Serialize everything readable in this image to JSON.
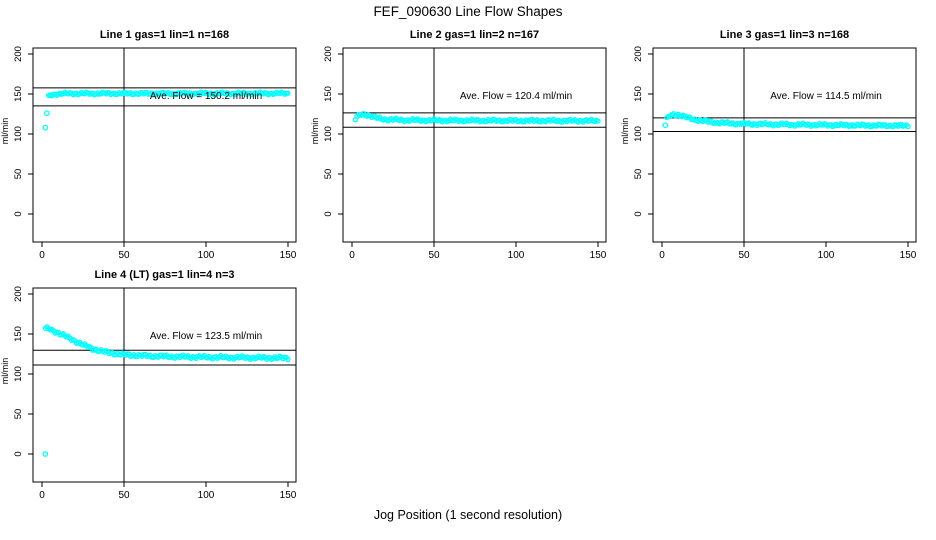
{
  "page": {
    "title": "FEF_090630  Line Flow Shapes",
    "xlabel": "Jog Position (1 second resolution)"
  },
  "chart_data": {
    "type": "scatter",
    "title": "FEF_090630  Line Flow Shapes",
    "xlabel": "Jog Position (1 second resolution)",
    "ylabel": "ml/min",
    "x_ticks": [
      0,
      50,
      100,
      150
    ],
    "y_ticks": [
      0,
      50,
      100,
      150,
      200
    ],
    "xlim": [
      0,
      155
    ],
    "ylim": [
      0,
      205
    ],
    "grid": false,
    "point_color": "#00ffff",
    "axis_color": "#000000",
    "v_line_x": 50,
    "plots": [
      {
        "title": "Line 1 gas=1 lin=1 n=168",
        "n": 168,
        "ave_flow": 150.2,
        "annotation": "Ave. Flow =  150.2  ml/min",
        "h_lines": [
          157.7,
          135.2
        ],
        "jitter": 1.3,
        "trend": [
          [
            4,
            146.5
          ],
          [
            5,
            148.5
          ],
          [
            7,
            149.5
          ],
          [
            10,
            150.3
          ],
          [
            15,
            150.6
          ],
          [
            25,
            150.7
          ],
          [
            50,
            150.7
          ],
          [
            100,
            150.7
          ],
          [
            150,
            150.8
          ]
        ],
        "outliers": [
          [
            2,
            108
          ],
          [
            3,
            126
          ]
        ]
      },
      {
        "title": "Line 2 gas=1 lin=2 n=167",
        "n": 167,
        "ave_flow": 120.4,
        "annotation": "Ave. Flow =  120.4  ml/min",
        "h_lines": [
          126.4,
          108.4
        ],
        "jitter": 1.4,
        "trend": [
          [
            2,
            118.5
          ],
          [
            3,
            121
          ],
          [
            5,
            124
          ],
          [
            7,
            124.8
          ],
          [
            9,
            124
          ],
          [
            12,
            122
          ],
          [
            15,
            120
          ],
          [
            20,
            118.5
          ],
          [
            30,
            117.5
          ],
          [
            50,
            117
          ],
          [
            80,
            116.8
          ],
          [
            120,
            116.6
          ],
          [
            150,
            116.5
          ]
        ],
        "outliers": []
      },
      {
        "title": "Line 3 gas=1 lin=3 n=168",
        "n": 168,
        "ave_flow": 114.5,
        "annotation": "Ave. Flow =  114.5  ml/min",
        "h_lines": [
          120.2,
          103.1
        ],
        "jitter": 1.4,
        "trend": [
          [
            3,
            119
          ],
          [
            5,
            123
          ],
          [
            7,
            124.8
          ],
          [
            10,
            124
          ],
          [
            14,
            121.5
          ],
          [
            18,
            119
          ],
          [
            24,
            116.5
          ],
          [
            32,
            114.5
          ],
          [
            45,
            113
          ],
          [
            60,
            112.3
          ],
          [
            80,
            111.8
          ],
          [
            100,
            111.3
          ],
          [
            125,
            110.8
          ],
          [
            150,
            110.4
          ]
        ],
        "outliers": [
          [
            2,
            111
          ]
        ]
      },
      {
        "title": "Line 4 (LT) gas=1 lin=4 n=3",
        "n": 3,
        "ave_flow": 123.5,
        "annotation": "Ave. Flow =  123.5  ml/min",
        "h_lines": [
          129.7,
          111.2
        ],
        "jitter": 1.6,
        "trend": [
          [
            2,
            157
          ],
          [
            4,
            156.5
          ],
          [
            6,
            155
          ],
          [
            9,
            152.5
          ],
          [
            12,
            149.5
          ],
          [
            15,
            146.5
          ],
          [
            18,
            143.5
          ],
          [
            21,
            140.5
          ],
          [
            24,
            137.5
          ],
          [
            27,
            134.8
          ],
          [
            30,
            132.3
          ],
          [
            34,
            129.8
          ],
          [
            38,
            127.8
          ],
          [
            42,
            126.3
          ],
          [
            46,
            125.2
          ],
          [
            50,
            124.3
          ],
          [
            55,
            123.6
          ],
          [
            60,
            123
          ],
          [
            70,
            122.3
          ],
          [
            80,
            121.8
          ],
          [
            90,
            121.4
          ],
          [
            100,
            121.1
          ],
          [
            110,
            120.8
          ],
          [
            120,
            120.6
          ],
          [
            135,
            120.3
          ],
          [
            150,
            120
          ]
        ],
        "outliers": [
          [
            2,
            0
          ]
        ]
      }
    ]
  }
}
